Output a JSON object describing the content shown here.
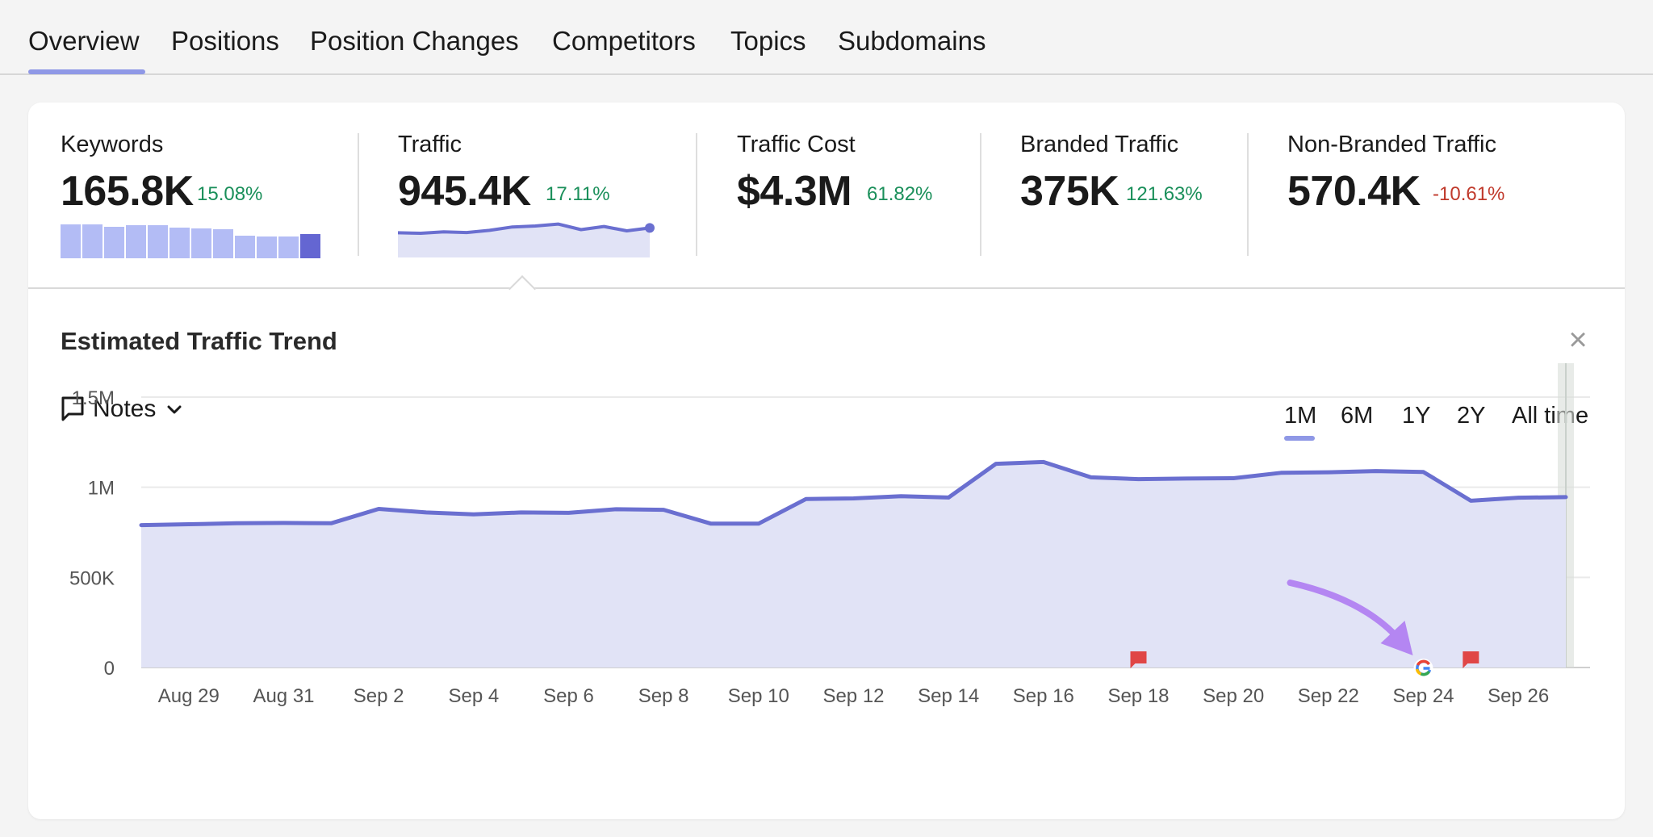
{
  "tabs": [
    "Overview",
    "Positions",
    "Position Changes",
    "Competitors",
    "Topics",
    "Subdomains"
  ],
  "active_tab": "Overview",
  "metrics": [
    {
      "label": "Keywords",
      "value": "165.8K",
      "change": "15.08%",
      "trend": "positive"
    },
    {
      "label": "Traffic",
      "value": "945.4K",
      "change": "17.11%",
      "trend": "positive"
    },
    {
      "label": "Traffic Cost",
      "value": "$4.3M",
      "change": "61.82%",
      "trend": "positive"
    },
    {
      "label": "Branded Traffic",
      "value": "375K",
      "change": "121.63%",
      "trend": "positive"
    },
    {
      "label": "Non-Branded Traffic",
      "value": "570.4K",
      "change": "-10.61%",
      "trend": "negative"
    }
  ],
  "keywords_minibars": [
    1.0,
    1.0,
    0.93,
    0.97,
    0.97,
    0.9,
    0.87,
    0.85,
    0.67,
    0.65,
    0.65,
    0.72
  ],
  "traffic_sparkline": [
    0.42,
    0.4,
    0.46,
    0.43,
    0.52,
    0.66,
    0.7,
    0.78,
    0.55,
    0.68,
    0.5,
    0.62
  ],
  "trend": {
    "title": "Estimated Traffic Trend",
    "notes_label": "Notes",
    "ranges": [
      "1M",
      "6M",
      "1Y",
      "2Y",
      "All time"
    ],
    "active_range": "1M"
  },
  "colors": {
    "line": "#6a6fd0",
    "area": "#e1e3f6",
    "positive": "#1a8f5a",
    "negative": "#c0392b",
    "accent": "#8f98e6",
    "arrow": "#b486f2",
    "flag": "#e04646"
  },
  "icons": {
    "close": "close-icon",
    "notes": "speech-bubble-icon",
    "dropdown": "chevron-down-icon",
    "google": "google-logo-icon",
    "flag": "flag-icon"
  },
  "chart_data": {
    "type": "area",
    "title": "Estimated Traffic Trend",
    "ylim": [
      0,
      1500000
    ],
    "yticks": [
      0,
      500000,
      1000000,
      1500000
    ],
    "ytick_labels": [
      "0",
      "500K",
      "1M",
      "1.5M"
    ],
    "xtick_labels": [
      "Aug 29",
      "Aug 31",
      "Sep 2",
      "Sep 4",
      "Sep 6",
      "Sep 8",
      "Sep 10",
      "Sep 12",
      "Sep 14",
      "Sep 16",
      "Sep 18",
      "Sep 20",
      "Sep 22",
      "Sep 24",
      "Sep 26"
    ],
    "x": [
      "Aug 28",
      "Aug 29",
      "Aug 30",
      "Aug 31",
      "Sep 1",
      "Sep 2",
      "Sep 3",
      "Sep 4",
      "Sep 5",
      "Sep 6",
      "Sep 7",
      "Sep 8",
      "Sep 9",
      "Sep 10",
      "Sep 11",
      "Sep 12",
      "Sep 13",
      "Sep 14",
      "Sep 15",
      "Sep 16",
      "Sep 17",
      "Sep 18",
      "Sep 19",
      "Sep 20",
      "Sep 21",
      "Sep 22",
      "Sep 23",
      "Sep 24",
      "Sep 25",
      "Sep 26",
      "Sep 27"
    ],
    "series": [
      {
        "values": [
          790000,
          795000,
          800000,
          802000,
          800000,
          880000,
          860000,
          850000,
          860000,
          858000,
          878000,
          875000,
          798000,
          798000,
          935000,
          938000,
          950000,
          943000,
          1130000,
          1140000,
          1055000,
          1045000,
          1048000,
          1050000,
          1080000,
          1083000,
          1090000,
          1085000,
          925000,
          942000,
          945400
        ]
      }
    ],
    "grid": true,
    "markers": [
      {
        "x": "Sep 18",
        "type": "flag"
      },
      {
        "x": "Sep 24",
        "type": "google"
      },
      {
        "x": "Sep 25",
        "type": "flag"
      }
    ]
  }
}
